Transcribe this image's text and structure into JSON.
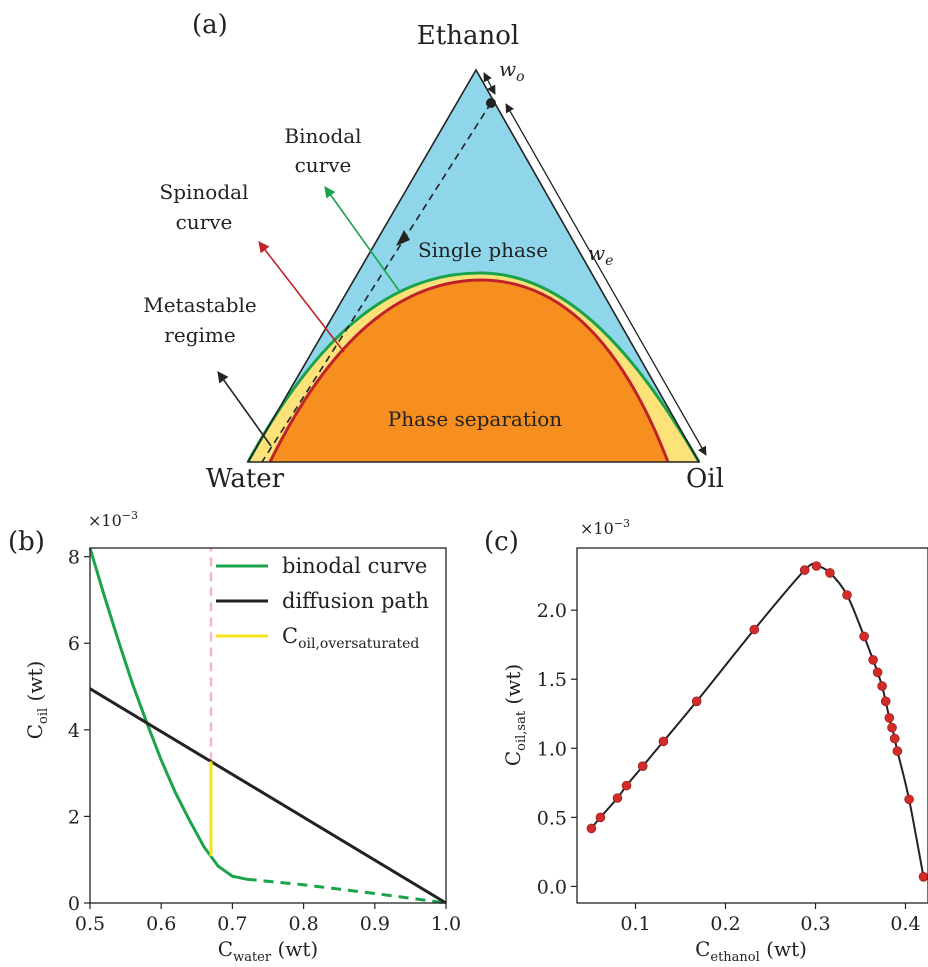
{
  "panel_a": {
    "label": "(a)",
    "vertex_top": "Ethanol",
    "vertex_left": "Water",
    "vertex_right": "Oil",
    "region_single": "Single phase",
    "region_separation": "Phase separation",
    "binodal_line1": "Binodal",
    "binodal_line2": "curve",
    "spinodal_line1": "Spinodal",
    "spinodal_line2": "curve",
    "metastable_line1": "Metastable",
    "metastable_line2": "regime",
    "wo_base": "w",
    "wo_sub": "o",
    "we_base": "w",
    "we_sub": "e",
    "colors": {
      "single_phase": "#8fd6ea",
      "metastable": "#fde27a",
      "separation": "#f68f1f",
      "binodal": "#1aa34a",
      "spinodal": "#c0222a",
      "path": "#222222"
    }
  },
  "chart_data": [
    {
      "panel": "b",
      "type": "line",
      "label": "(b)",
      "xlabel_base": "C",
      "xlabel_sub": "water",
      "xlabel_unit": " (wt)",
      "ylabel_base": "C",
      "ylabel_sub": "oil",
      "ylabel_unit": " (wt)",
      "y_multiplier": "×10",
      "y_multiplier_exp": "−3",
      "xlim": [
        0.5,
        1.0
      ],
      "ylim": [
        0,
        8.2
      ],
      "xticks": [
        0.5,
        0.6,
        0.7,
        0.8,
        0.9,
        1.0
      ],
      "xtick_labels": [
        "0.5",
        "0.6",
        "0.7",
        "0.8",
        "0.9",
        "1.0"
      ],
      "yticks": [
        0,
        2,
        4,
        6,
        8
      ],
      "ytick_labels": [
        "0",
        "2",
        "4",
        "6",
        "8"
      ],
      "grid": false,
      "legend_position": "top-right",
      "series": [
        {
          "name": "binodal curve",
          "color": "#1aa34a",
          "style": "solid",
          "x": [
            0.5,
            0.52,
            0.54,
            0.56,
            0.58,
            0.6,
            0.62,
            0.64,
            0.66,
            0.68,
            0.7,
            0.72
          ],
          "y": [
            8.2,
            7.1,
            6.05,
            5.05,
            4.15,
            3.3,
            2.55,
            1.9,
            1.3,
            0.85,
            0.62,
            0.55
          ]
        },
        {
          "name": "binodal curve (extension)",
          "color": "#1aa34a",
          "style": "dashed",
          "x": [
            0.72,
            0.8,
            0.9,
            1.0
          ],
          "y": [
            0.55,
            0.42,
            0.22,
            0.0
          ]
        },
        {
          "name": "diffusion path",
          "color": "#222222",
          "style": "solid",
          "x": [
            0.5,
            1.0
          ],
          "y": [
            4.95,
            0.0
          ]
        },
        {
          "name": "C",
          "name_sub": "oil,oversaturated",
          "color": "#f5e21c",
          "style": "solid",
          "x": [
            0.67,
            0.67
          ],
          "y": [
            1.08,
            3.27
          ]
        },
        {
          "name": "marker",
          "color": "#f4b6be",
          "style": "dashed",
          "x": [
            0.67,
            0.67
          ],
          "y": [
            3.27,
            8.2
          ]
        }
      ],
      "legend": [
        {
          "text": "binodal curve",
          "sub": "",
          "color": "#1aa34a"
        },
        {
          "text": "diffusion path",
          "sub": "",
          "color": "#222222"
        },
        {
          "text": "C",
          "sub": "oil,oversaturated",
          "color": "#f5e21c"
        }
      ]
    },
    {
      "panel": "c",
      "type": "scatter",
      "label": "(c)",
      "xlabel_base": "C",
      "xlabel_sub": "ethanol",
      "xlabel_unit": " (wt)",
      "ylabel_base": "C",
      "ylabel_sub": "oil,sat",
      "ylabel_unit": " (wt)",
      "y_multiplier": "×10",
      "y_multiplier_exp": "−3",
      "xlim": [
        0.035,
        0.425
      ],
      "ylim": [
        -0.12,
        2.45
      ],
      "xticks": [
        0.1,
        0.2,
        0.3,
        0.4
      ],
      "xtick_labels": [
        "0.1",
        "0.2",
        "0.3",
        "0.4"
      ],
      "yticks": [
        0.0,
        0.5,
        1.0,
        1.5,
        2.0
      ],
      "ytick_labels": [
        "0.0",
        "0.5",
        "1.0",
        "1.5",
        "2.0"
      ],
      "grid": false,
      "points_color": "#d32a2a",
      "line_color": "#222222",
      "x": [
        0.051,
        0.061,
        0.08,
        0.09,
        0.108,
        0.131,
        0.168,
        0.232,
        0.288,
        0.301,
        0.316,
        0.335,
        0.354,
        0.364,
        0.369,
        0.374,
        0.378,
        0.382,
        0.385,
        0.388,
        0.391,
        0.404,
        0.42
      ],
      "y": [
        0.42,
        0.5,
        0.64,
        0.73,
        0.87,
        1.05,
        1.34,
        1.86,
        2.29,
        2.32,
        2.27,
        2.11,
        1.81,
        1.64,
        1.55,
        1.45,
        1.34,
        1.22,
        1.15,
        1.07,
        0.98,
        0.63,
        0.07
      ]
    }
  ]
}
